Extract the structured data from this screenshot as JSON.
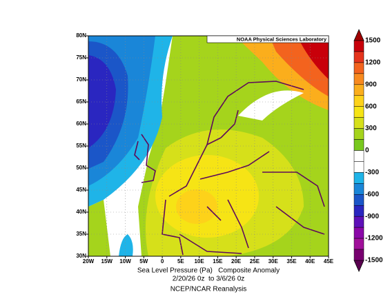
{
  "header": {
    "credit": "NOAA Physical Sciences Laboratory"
  },
  "map": {
    "lon_labels": [
      "20W",
      "15W",
      "10W",
      "5W",
      "0",
      "5E",
      "10E",
      "15E",
      "20E",
      "25E",
      "30E",
      "35E",
      "40E",
      "45E"
    ],
    "lat_labels": [
      "80N",
      "75N",
      "70N",
      "65N",
      "60N",
      "55N",
      "50N",
      "45N",
      "40N",
      "35N",
      "30N"
    ]
  },
  "colorbar": {
    "labels": [
      1500,
      1200,
      900,
      600,
      300,
      0,
      -300,
      -600,
      -900,
      -1200,
      -1500
    ],
    "colors": [
      "#c8000a",
      "#e5341c",
      "#f3631e",
      "#f88a1f",
      "#fbae1c",
      "#fdd21a",
      "#f6e415",
      "#d6e01a",
      "#a5d41c",
      "#78c81e",
      "#ffffff",
      "#ffffff",
      "#1fb4e8",
      "#1a86d8",
      "#1b56c8",
      "#2a26c0",
      "#5e10b8",
      "#8a08a8",
      "#a0109a",
      "#780070"
    ],
    "over_color": "#a00000",
    "under_color": "#5a0050"
  },
  "caption": {
    "line1": "Sea Level Pressure (Pa)   Composite Anomaly",
    "line2": "2/20/26 0z  to 3/6/26 0z",
    "line3": "NCEP/NCAR Reanalysis"
  }
}
